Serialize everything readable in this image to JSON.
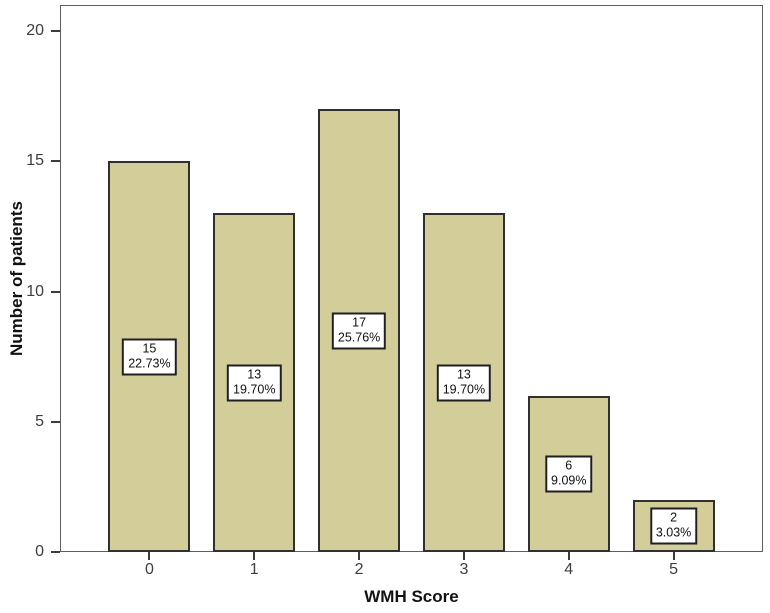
{
  "chart_data": {
    "type": "bar",
    "title": "",
    "xlabel": "WMH Score",
    "ylabel": "Number of patients",
    "categories": [
      "0",
      "1",
      "2",
      "3",
      "4",
      "5"
    ],
    "values": [
      15,
      13,
      17,
      13,
      6,
      2
    ],
    "bar_labels": [
      {
        "count": "15",
        "percent": "22.73%"
      },
      {
        "count": "13",
        "percent": "19.70%"
      },
      {
        "count": "17",
        "percent": "25.76%"
      },
      {
        "count": "13",
        "percent": "19.70%"
      },
      {
        "count": "6",
        "percent": "9.09%"
      },
      {
        "count": "2",
        "percent": "3.03%"
      }
    ],
    "ylim": [
      0,
      21
    ],
    "yticks": [
      0,
      5,
      10,
      15,
      20
    ],
    "grid": false,
    "legend_position": "none",
    "colors": {
      "bar_fill": "#d2cd99",
      "bar_border": "#303030",
      "label_box_fill": "#ffffff",
      "label_box_border": "#1f1f1f",
      "frame": "#5f5f5f",
      "tick_text": "#3d3d3d",
      "axis_title_text": "#121212",
      "background": "#ffffff"
    }
  }
}
